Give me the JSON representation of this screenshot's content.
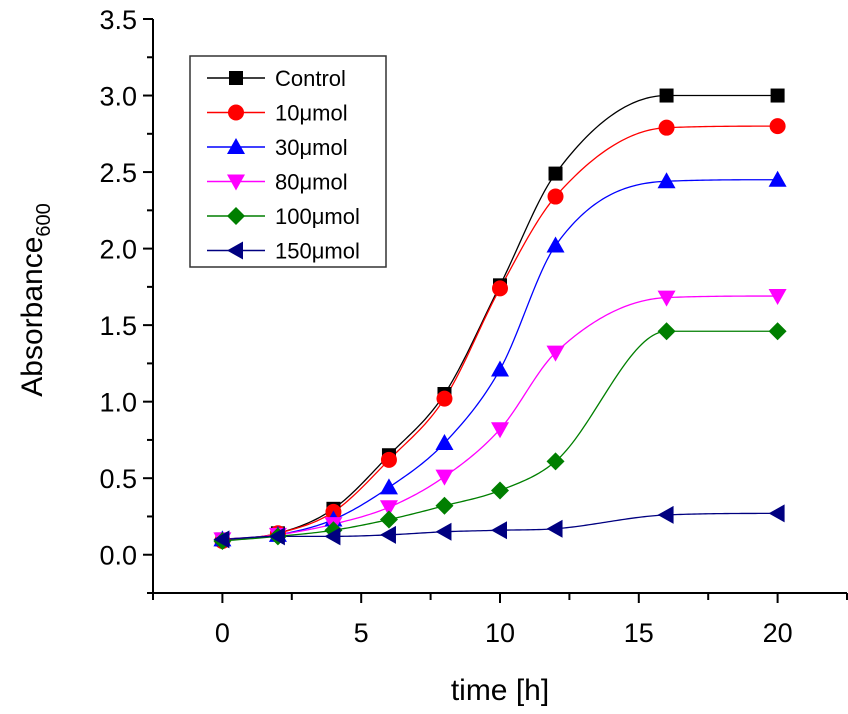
{
  "chart_data": {
    "type": "line",
    "title": "",
    "xlabel": "time [h]",
    "ylabel": "Absorbance",
    "ylabel_subscript": "600",
    "xlim": [
      -2.5,
      22.5
    ],
    "ylim": [
      -0.25,
      3.5
    ],
    "x_ticks": [
      0,
      5,
      10,
      15,
      20
    ],
    "x_tick_labels": [
      "0",
      "5",
      "10",
      "15",
      "20"
    ],
    "y_ticks": [
      0.0,
      0.5,
      1.0,
      1.5,
      2.0,
      2.5,
      3.0,
      3.5
    ],
    "y_tick_labels": [
      "0.0",
      "0.5",
      "1.0",
      "1.5",
      "2.0",
      "2.5",
      "3.0",
      "3.5"
    ],
    "grid": false,
    "legend_position": "top-left",
    "x": [
      0,
      2,
      4,
      6,
      8,
      10,
      12,
      16,
      20
    ],
    "series": [
      {
        "name": "Control",
        "color": "#000000",
        "marker": "square",
        "values": [
          0.1,
          0.14,
          0.3,
          0.65,
          1.05,
          1.76,
          2.49,
          3.0,
          3.0
        ]
      },
      {
        "name": "10μmol",
        "color": "#ff0000",
        "marker": "circle",
        "values": [
          0.09,
          0.14,
          0.28,
          0.62,
          1.02,
          1.74,
          2.34,
          2.79,
          2.8
        ]
      },
      {
        "name": "30μmol",
        "color": "#0000ff",
        "marker": "triangle-up",
        "values": [
          0.1,
          0.13,
          0.23,
          0.44,
          0.73,
          1.21,
          2.02,
          2.44,
          2.45
        ]
      },
      {
        "name": "80μmol",
        "color": "#ff00ff",
        "marker": "triangle-down",
        "values": [
          0.1,
          0.13,
          0.2,
          0.31,
          0.51,
          0.82,
          1.32,
          1.68,
          1.69
        ]
      },
      {
        "name": "100μmol",
        "color": "#007f00",
        "marker": "diamond",
        "values": [
          0.09,
          0.12,
          0.16,
          0.23,
          0.32,
          0.42,
          0.61,
          1.46,
          1.46
        ]
      },
      {
        "name": "150μmol",
        "color": "#000080",
        "marker": "triangle-left",
        "values": [
          0.1,
          0.12,
          0.12,
          0.13,
          0.15,
          0.16,
          0.17,
          0.26,
          0.27
        ]
      }
    ]
  }
}
